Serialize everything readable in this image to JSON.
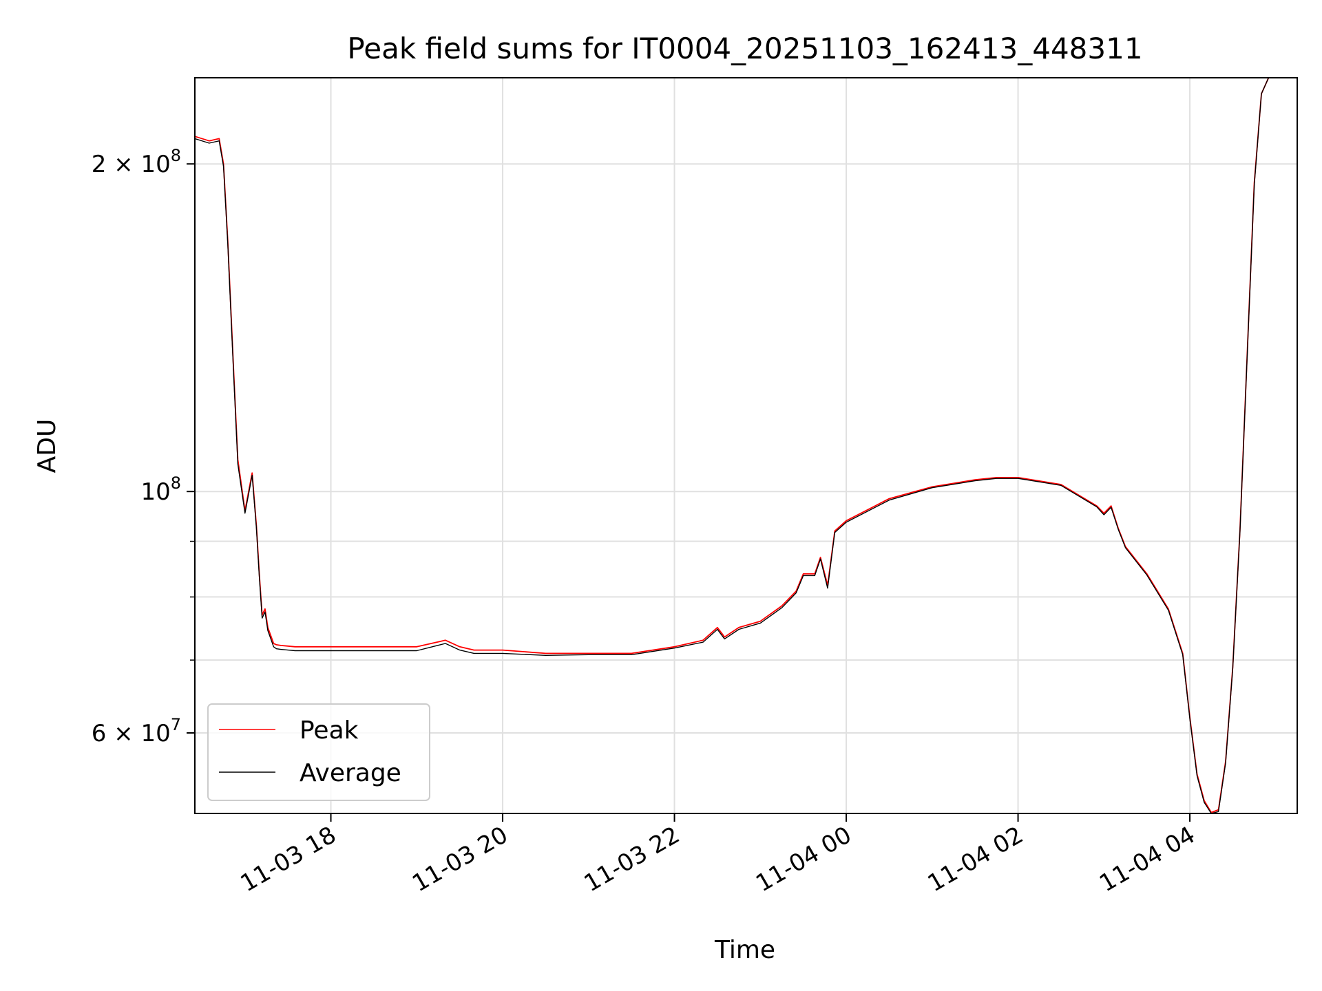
{
  "chart_data": {
    "type": "line",
    "title": "Peak field sums for IT0004_20251103_162413_448311",
    "xlabel": "Time",
    "ylabel": "ADU",
    "x_unit": "hours",
    "xlim": [
      "2025-11-03 16:25",
      "2025-11-04 05:15"
    ],
    "ylim": [
      50600000,
      240000000
    ],
    "y_scale": "log",
    "grid": true,
    "legend_position": "lower-left",
    "x_ticks": [
      {
        "time": "2025-11-03 18:00",
        "label": "11-03 18"
      },
      {
        "time": "2025-11-03 20:00",
        "label": "11-03 20"
      },
      {
        "time": "2025-11-03 22:00",
        "label": "11-03 22"
      },
      {
        "time": "2025-11-04 00:00",
        "label": "11-04 00"
      },
      {
        "time": "2025-11-04 02:00",
        "label": "11-04 02"
      },
      {
        "time": "2025-11-04 04:00",
        "label": "11-04 04"
      }
    ],
    "y_ticks_major": [
      {
        "value": 200000000,
        "mantissa": "2",
        "exponent": "8"
      },
      {
        "value": 100000000,
        "mantissa": "",
        "exponent": "8"
      },
      {
        "value": 60000000,
        "mantissa": "6",
        "exponent": "7"
      }
    ],
    "y_ticks_minor": [
      70000000,
      80000000,
      90000000
    ],
    "series": [
      {
        "name": "Peak",
        "color": "#ff0000",
        "x": [
          "2025-11-03 16:25",
          "2025-11-03 16:35",
          "2025-11-03 16:42",
          "2025-11-03 16:45",
          "2025-11-03 16:48",
          "2025-11-03 16:52",
          "2025-11-03 16:55",
          "2025-11-03 17:00",
          "2025-11-03 17:05",
          "2025-11-03 17:08",
          "2025-11-03 17:10",
          "2025-11-03 17:12",
          "2025-11-03 17:14",
          "2025-11-03 17:16",
          "2025-11-03 17:20",
          "2025-11-03 17:22",
          "2025-11-03 17:25",
          "2025-11-03 17:30",
          "2025-11-03 17:35",
          "2025-11-03 17:40",
          "2025-11-03 17:45",
          "2025-11-03 17:50",
          "2025-11-03 18:00",
          "2025-11-03 18:30",
          "2025-11-03 19:00",
          "2025-11-03 19:20",
          "2025-11-03 19:30",
          "2025-11-03 19:40",
          "2025-11-03 20:00",
          "2025-11-03 20:30",
          "2025-11-03 21:00",
          "2025-11-03 21:30",
          "2025-11-03 22:00",
          "2025-11-03 22:20",
          "2025-11-03 22:30",
          "2025-11-03 22:35",
          "2025-11-03 22:45",
          "2025-11-03 23:00",
          "2025-11-03 23:15",
          "2025-11-03 23:25",
          "2025-11-03 23:30",
          "2025-11-03 23:38",
          "2025-11-03 23:42",
          "2025-11-03 23:47",
          "2025-11-03 23:52",
          "2025-11-04 00:00",
          "2025-11-04 00:30",
          "2025-11-04 01:00",
          "2025-11-04 01:30",
          "2025-11-04 01:45",
          "2025-11-04 02:00",
          "2025-11-04 02:30",
          "2025-11-04 02:55",
          "2025-11-04 03:00",
          "2025-11-04 03:05",
          "2025-11-04 03:10",
          "2025-11-04 03:15",
          "2025-11-04 03:30",
          "2025-11-04 03:45",
          "2025-11-04 03:55",
          "2025-11-04 04:00",
          "2025-11-04 04:05",
          "2025-11-04 04:10",
          "2025-11-04 04:15",
          "2025-11-04 04:20",
          "2025-11-04 04:25",
          "2025-11-04 04:30",
          "2025-11-04 04:35",
          "2025-11-04 04:40",
          "2025-11-04 04:45",
          "2025-11-04 04:50",
          "2025-11-04 04:55",
          "2025-11-04 05:00",
          "2025-11-04 05:05",
          "2025-11-04 05:10",
          "2025-11-04 05:15"
        ],
        "values": [
          212000000,
          210000000,
          211000000,
          200000000,
          170000000,
          130000000,
          107000000,
          96000000,
          104000000,
          93000000,
          84000000,
          77000000,
          78000000,
          75000000,
          72500000,
          72300000,
          72200000,
          72100000,
          72000000,
          72000000,
          72000000,
          72000000,
          72000000,
          72000000,
          72000000,
          73000000,
          72000000,
          71500000,
          71500000,
          71000000,
          71000000,
          71000000,
          72000000,
          73000000,
          75000000,
          73500000,
          75000000,
          76000000,
          78500000,
          81000000,
          84000000,
          84000000,
          87000000,
          82000000,
          92000000,
          94000000,
          98500000,
          101000000,
          102500000,
          103000000,
          103000000,
          101500000,
          97000000,
          95500000,
          97000000,
          92500000,
          89000000,
          84000000,
          78000000,
          71000000,
          62000000,
          55000000,
          52000000,
          50700000,
          51000000,
          56500000,
          69000000,
          92000000,
          133000000,
          192000000,
          232000000,
          240000000,
          240000000,
          240000000,
          240000000,
          240000000
        ]
      },
      {
        "name": "Average",
        "color": "#000000",
        "x": [
          "2025-11-03 16:25",
          "2025-11-03 16:35",
          "2025-11-03 16:42",
          "2025-11-03 16:45",
          "2025-11-03 16:48",
          "2025-11-03 16:52",
          "2025-11-03 16:55",
          "2025-11-03 17:00",
          "2025-11-03 17:05",
          "2025-11-03 17:08",
          "2025-11-03 17:10",
          "2025-11-03 17:12",
          "2025-11-03 17:14",
          "2025-11-03 17:16",
          "2025-11-03 17:20",
          "2025-11-03 17:22",
          "2025-11-03 17:25",
          "2025-11-03 17:30",
          "2025-11-03 17:35",
          "2025-11-03 17:40",
          "2025-11-03 17:45",
          "2025-11-03 17:50",
          "2025-11-03 18:00",
          "2025-11-03 18:30",
          "2025-11-03 19:00",
          "2025-11-03 19:20",
          "2025-11-03 19:30",
          "2025-11-03 19:40",
          "2025-11-03 20:00",
          "2025-11-03 20:30",
          "2025-11-03 21:00",
          "2025-11-03 21:30",
          "2025-11-03 22:00",
          "2025-11-03 22:20",
          "2025-11-03 22:30",
          "2025-11-03 22:35",
          "2025-11-03 22:45",
          "2025-11-03 23:00",
          "2025-11-03 23:15",
          "2025-11-03 23:25",
          "2025-11-03 23:30",
          "2025-11-03 23:38",
          "2025-11-03 23:42",
          "2025-11-03 23:47",
          "2025-11-03 23:52",
          "2025-11-04 00:00",
          "2025-11-04 00:30",
          "2025-11-04 01:00",
          "2025-11-04 01:30",
          "2025-11-04 01:45",
          "2025-11-04 02:00",
          "2025-11-04 02:30",
          "2025-11-04 02:55",
          "2025-11-04 03:00",
          "2025-11-04 03:05",
          "2025-11-04 03:10",
          "2025-11-04 03:15",
          "2025-11-04 03:30",
          "2025-11-04 03:45",
          "2025-11-04 03:55",
          "2025-11-04 04:00",
          "2025-11-04 04:05",
          "2025-11-04 04:10",
          "2025-11-04 04:15",
          "2025-11-04 04:20",
          "2025-11-04 04:25",
          "2025-11-04 04:30",
          "2025-11-04 04:35",
          "2025-11-04 04:40",
          "2025-11-04 04:45",
          "2025-11-04 04:50",
          "2025-11-04 04:55",
          "2025-11-04 05:00",
          "2025-11-04 05:05",
          "2025-11-04 05:10",
          "2025-11-04 05:15"
        ],
        "values": [
          211000000,
          209000000,
          210000000,
          199000000,
          169000000,
          129000000,
          106000000,
          95500000,
          103500000,
          92500000,
          83500000,
          76500000,
          77500000,
          74500000,
          72000000,
          71700000,
          71600000,
          71500000,
          71400000,
          71400000,
          71400000,
          71400000,
          71400000,
          71400000,
          71400000,
          72500000,
          71500000,
          71000000,
          71000000,
          70700000,
          70800000,
          70800000,
          71800000,
          72700000,
          74700000,
          73200000,
          74700000,
          75700000,
          78200000,
          80700000,
          83700000,
          83700000,
          86700000,
          81500000,
          91700000,
          93700000,
          98200000,
          100800000,
          102300000,
          102800000,
          102800000,
          101300000,
          96800000,
          95200000,
          96700000,
          92300000,
          88800000,
          83800000,
          77800000,
          70800000,
          61800000,
          54800000,
          51800000,
          50600000,
          50800000,
          56300000,
          68800000,
          91700000,
          132500000,
          191000000,
          232000000,
          240000000,
          240000000,
          240000000,
          240000000,
          240000000
        ]
      }
    ]
  }
}
